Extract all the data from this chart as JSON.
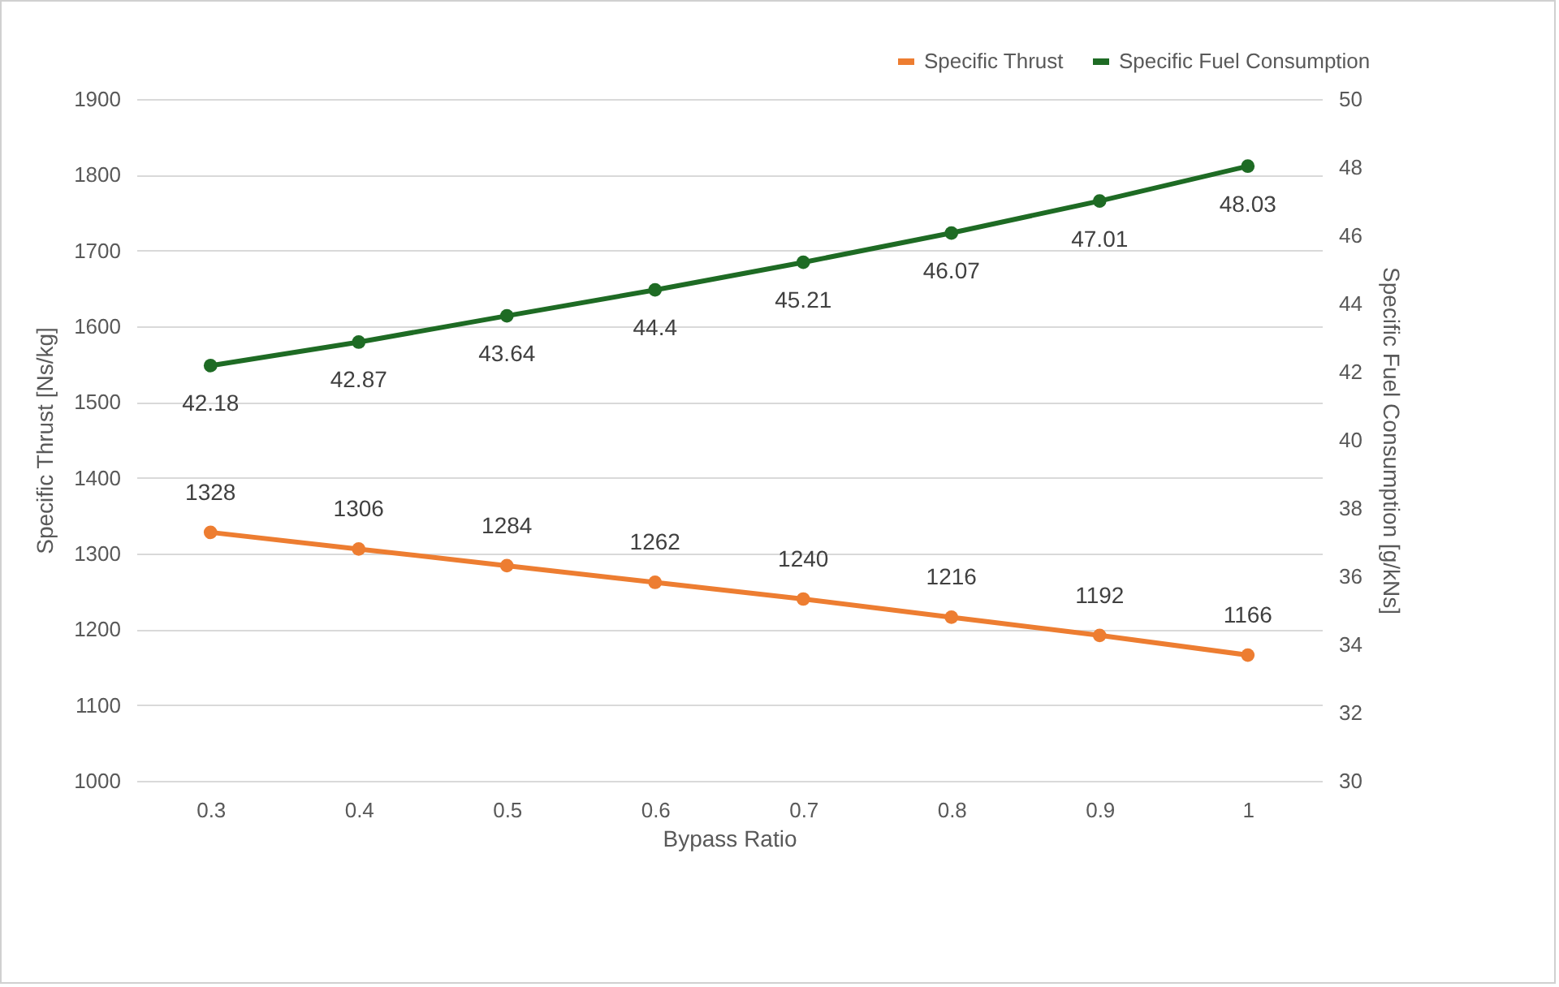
{
  "chart_data": {
    "type": "line",
    "xlabel": "Bypass Ratio",
    "ylabel": "Specific Thrust [Ns/kg]",
    "y2label": "Specific Fuel Consumption [g/kNs]",
    "categories": [
      "0.3",
      "0.4",
      "0.5",
      "0.6",
      "0.7",
      "0.8",
      "0.9",
      "1"
    ],
    "series": [
      {
        "name": "Specific Thrust",
        "color": "#ed7d31",
        "values": [
          1328,
          1306,
          1284,
          1262,
          1240,
          1216,
          1192,
          1166
        ]
      },
      {
        "name": "Specific Fuel Consumption",
        "color": "#1e6b24",
        "axis": "y2",
        "values": [
          42.18,
          42.87,
          43.64,
          44.4,
          45.21,
          46.07,
          47.01,
          48.03
        ]
      }
    ],
    "ylim": [
      1000,
      1900
    ],
    "yticks": [
      1000,
      1100,
      1200,
      1300,
      1400,
      1500,
      1600,
      1700,
      1800,
      1900
    ],
    "y2lim": [
      30,
      50
    ],
    "y2ticks": [
      30,
      32,
      34,
      36,
      38,
      40,
      42,
      44,
      46,
      48,
      50
    ],
    "data_labels": true,
    "grid": "y",
    "legend": "top right",
    "marker": "circle",
    "line_style": "solid"
  }
}
